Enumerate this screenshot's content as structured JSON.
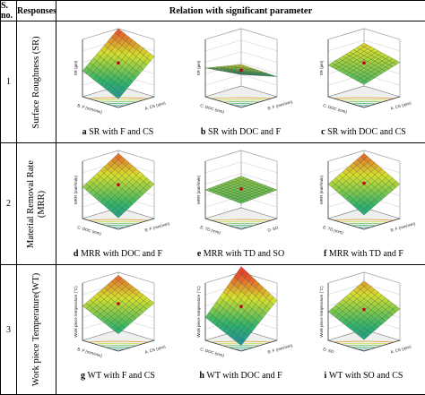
{
  "header": {
    "sno": "S.\nno.",
    "responses": "Responses",
    "relation": "Relation with significant parameter"
  },
  "rows": [
    {
      "no": "1",
      "response": "Surface Roughness (SR)",
      "response_lines": [
        "Surface Roughness (SR)"
      ],
      "panels": [
        {
          "letter": "a",
          "caption": "SR with F and CS",
          "zlabel": "SR (µm)",
          "xlabel": "A: CS (rpm)",
          "ylabel": "B: F (mm/min)"
        },
        {
          "letter": "b",
          "caption": "SR with DOC and F",
          "zlabel": "SR (µm)",
          "xlabel": "B: F (mm/min)",
          "ylabel": "C: DOC (mm)"
        },
        {
          "letter": "c",
          "caption": "SR with DOC and CS",
          "zlabel": "SR (µm)",
          "xlabel": "A: CS (rpm)",
          "ylabel": "C: DOC (mm)"
        }
      ]
    },
    {
      "no": "2",
      "response": "Material Removal Rate (MRR)",
      "response_lines": [
        "Material Removal Rate",
        "(MRR)"
      ],
      "panels": [
        {
          "letter": "d",
          "caption": "MRR with DOC and F",
          "zlabel": "MRR (mm³/min)",
          "xlabel": "B: F (mm/min)",
          "ylabel": "C: DOC (mm)"
        },
        {
          "letter": "e",
          "caption": "MRR with TD and SO",
          "zlabel": "MRR (mm³/min)",
          "xlabel": "D: SO",
          "ylabel": "E: TD (mm)"
        },
        {
          "letter": "f",
          "caption": "MRR with TD and F",
          "zlabel": "MRR (mm³/min)",
          "xlabel": "B: F (mm/min)",
          "ylabel": "E: TD (mm)"
        }
      ]
    },
    {
      "no": "3",
      "response": "Work piece Temperature(WT)",
      "response_lines": [
        "Work piece Temperature(WT)"
      ],
      "panels": [
        {
          "letter": "g",
          "caption": "WT with F and CS",
          "zlabel": "Work piece temperature (°C)",
          "xlabel": "A: CS (rpm)",
          "ylabel": "B: F (mm/min)"
        },
        {
          "letter": "h",
          "caption": "WT with DOC and  F",
          "zlabel": "Work piece temperature (°C)",
          "xlabel": "B: F (mm/min)",
          "ylabel": "C: DOC (mm)"
        },
        {
          "letter": "i",
          "caption": "WT with SO and CS",
          "zlabel": "Work piece temperature (°C)",
          "xlabel": "A: CS (rpm)",
          "ylabel": "D: SO"
        }
      ]
    }
  ],
  "colors": {
    "high": "#e8462a",
    "mid": "#d8e02c",
    "low": "#2fb36a",
    "lowest": "#1a7fb8",
    "grid": "#7a8a7a",
    "point": "#c0001a"
  }
}
